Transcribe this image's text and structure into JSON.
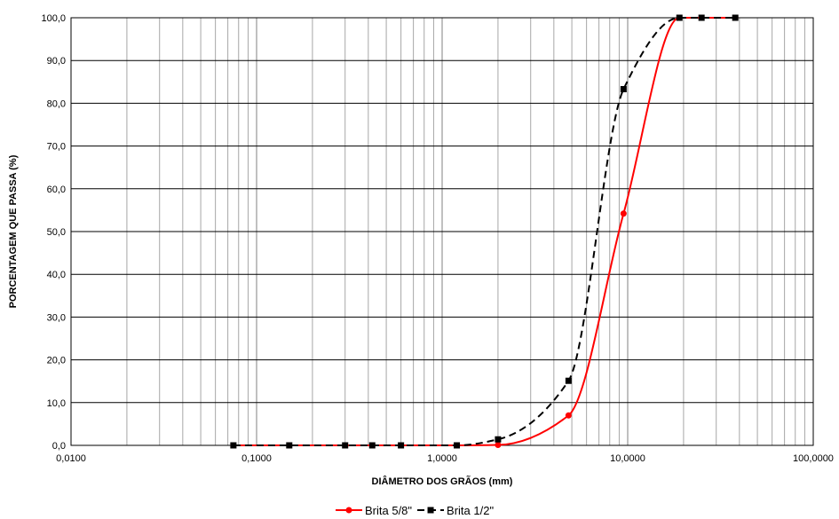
{
  "chart_data": {
    "type": "line",
    "x_scale": "log",
    "xlabel": "DIÂMETRO DOS GRÃOS (mm)",
    "ylabel": "PORCENTAGEM QUE PASSA (%)",
    "xlim": [
      0.01,
      100
    ],
    "ylim": [
      0,
      100
    ],
    "x_tick_labels": [
      "0,0100",
      "0,1000",
      "1,0000",
      "10,0000",
      "100,0000"
    ],
    "y_tick_labels": [
      "0,0",
      "10,0",
      "20,0",
      "30,0",
      "40,0",
      "50,0",
      "60,0",
      "70,0",
      "80,0",
      "90,0",
      "100,0"
    ],
    "grid": true,
    "legend_position": "bottom",
    "series": [
      {
        "name": "Brita 5/8\"",
        "color": "#ff0000",
        "line_style": "solid",
        "marker": "circle",
        "x": [
          0.075,
          0.15,
          0.3,
          0.42,
          0.6,
          1.2,
          2.0,
          4.8,
          9.5,
          19.0,
          25.0,
          38.0
        ],
        "y": [
          0.0,
          0.0,
          0.0,
          0.0,
          0.0,
          0.0,
          0.1,
          7.0,
          54.2,
          100.0,
          100.0,
          100.0
        ]
      },
      {
        "name": "Brita 1/2\"",
        "color": "#000000",
        "line_style": "dashed",
        "marker": "square",
        "x": [
          0.075,
          0.15,
          0.3,
          0.42,
          0.6,
          1.2,
          2.0,
          4.8,
          9.5,
          19.0,
          25.0,
          38.0
        ],
        "y": [
          0.0,
          0.0,
          0.0,
          0.0,
          0.0,
          0.0,
          1.4,
          15.1,
          83.3,
          100.0,
          100.0,
          100.0
        ]
      }
    ]
  }
}
